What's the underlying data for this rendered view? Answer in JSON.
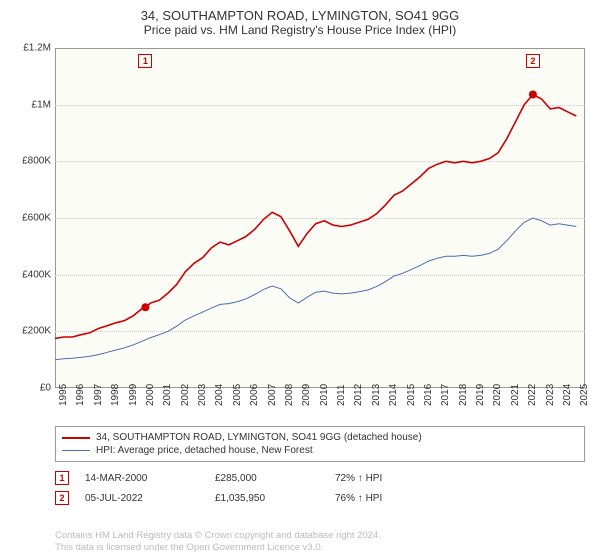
{
  "title": "34, SOUTHAMPTON ROAD, LYMINGTON, SO41 9GG",
  "subtitle": "Price paid vs. HM Land Registry's House Price Index (HPI)",
  "chart": {
    "type": "line",
    "background_color": "#fcfcf7",
    "border_color": "#999999",
    "grid_color": "#cccccc",
    "ylim": [
      0,
      1200000
    ],
    "ytick_step": 200000,
    "y_ticks": [
      {
        "v": 0,
        "label": "£0"
      },
      {
        "v": 200000,
        "label": "£200K"
      },
      {
        "v": 400000,
        "label": "£400K"
      },
      {
        "v": 600000,
        "label": "£600K"
      },
      {
        "v": 800000,
        "label": "£800K"
      },
      {
        "v": 1000000,
        "label": "£1M"
      },
      {
        "v": 1200000,
        "label": "£1.2M"
      }
    ],
    "x_years": [
      1995,
      1996,
      1997,
      1998,
      1999,
      2000,
      2001,
      2002,
      2003,
      2004,
      2005,
      2006,
      2007,
      2008,
      2009,
      2010,
      2011,
      2012,
      2013,
      2014,
      2015,
      2016,
      2017,
      2018,
      2019,
      2020,
      2021,
      2022,
      2023,
      2024,
      2025
    ],
    "xlim": [
      1995,
      2025.5
    ],
    "series": [
      {
        "name": "34, SOUTHAMPTON ROAD, LYMINGTON, SO41 9GG (detached house)",
        "color": "#cc0000",
        "line_width": 1.6,
        "data": [
          [
            1995.0,
            175000
          ],
          [
            1995.5,
            180000
          ],
          [
            1996.0,
            180000
          ],
          [
            1996.5,
            188000
          ],
          [
            1997.0,
            195000
          ],
          [
            1997.5,
            210000
          ],
          [
            1998.0,
            220000
          ],
          [
            1998.5,
            230000
          ],
          [
            1999.0,
            238000
          ],
          [
            1999.5,
            255000
          ],
          [
            2000.0,
            280000
          ],
          [
            2000.2,
            285000
          ],
          [
            2000.5,
            300000
          ],
          [
            2001.0,
            310000
          ],
          [
            2001.5,
            335000
          ],
          [
            2002.0,
            365000
          ],
          [
            2002.5,
            410000
          ],
          [
            2003.0,
            440000
          ],
          [
            2003.5,
            460000
          ],
          [
            2004.0,
            495000
          ],
          [
            2004.5,
            515000
          ],
          [
            2005.0,
            505000
          ],
          [
            2005.5,
            520000
          ],
          [
            2006.0,
            535000
          ],
          [
            2006.5,
            560000
          ],
          [
            2007.0,
            595000
          ],
          [
            2007.5,
            620000
          ],
          [
            2008.0,
            605000
          ],
          [
            2008.5,
            555000
          ],
          [
            2009.0,
            500000
          ],
          [
            2009.5,
            545000
          ],
          [
            2010.0,
            580000
          ],
          [
            2010.5,
            590000
          ],
          [
            2011.0,
            575000
          ],
          [
            2011.5,
            570000
          ],
          [
            2012.0,
            575000
          ],
          [
            2012.5,
            585000
          ],
          [
            2013.0,
            595000
          ],
          [
            2013.5,
            615000
          ],
          [
            2014.0,
            645000
          ],
          [
            2014.5,
            680000
          ],
          [
            2015.0,
            695000
          ],
          [
            2015.5,
            720000
          ],
          [
            2016.0,
            745000
          ],
          [
            2016.5,
            775000
          ],
          [
            2017.0,
            790000
          ],
          [
            2017.5,
            800000
          ],
          [
            2018.0,
            795000
          ],
          [
            2018.5,
            800000
          ],
          [
            2019.0,
            795000
          ],
          [
            2019.5,
            800000
          ],
          [
            2020.0,
            810000
          ],
          [
            2020.5,
            830000
          ],
          [
            2021.0,
            880000
          ],
          [
            2021.5,
            940000
          ],
          [
            2022.0,
            1000000
          ],
          [
            2022.5,
            1035950
          ],
          [
            2023.0,
            1020000
          ],
          [
            2023.5,
            985000
          ],
          [
            2024.0,
            990000
          ],
          [
            2024.5,
            975000
          ],
          [
            2025.0,
            960000
          ]
        ]
      },
      {
        "name": "HPI: Average price, detached house, New Forest",
        "color": "#4a6fb0",
        "line_width": 1,
        "data": [
          [
            1995.0,
            100000
          ],
          [
            1995.5,
            103000
          ],
          [
            1996.0,
            105000
          ],
          [
            1996.5,
            108000
          ],
          [
            1997.0,
            112000
          ],
          [
            1997.5,
            118000
          ],
          [
            1998.0,
            126000
          ],
          [
            1998.5,
            134000
          ],
          [
            1999.0,
            142000
          ],
          [
            1999.5,
            152000
          ],
          [
            2000.0,
            165000
          ],
          [
            2000.5,
            178000
          ],
          [
            2001.0,
            188000
          ],
          [
            2001.5,
            200000
          ],
          [
            2002.0,
            218000
          ],
          [
            2002.5,
            240000
          ],
          [
            2003.0,
            255000
          ],
          [
            2003.5,
            268000
          ],
          [
            2004.0,
            282000
          ],
          [
            2004.5,
            295000
          ],
          [
            2005.0,
            298000
          ],
          [
            2005.5,
            305000
          ],
          [
            2006.0,
            315000
          ],
          [
            2006.5,
            330000
          ],
          [
            2007.0,
            348000
          ],
          [
            2007.5,
            360000
          ],
          [
            2008.0,
            350000
          ],
          [
            2008.5,
            318000
          ],
          [
            2009.0,
            300000
          ],
          [
            2009.5,
            320000
          ],
          [
            2010.0,
            338000
          ],
          [
            2010.5,
            342000
          ],
          [
            2011.0,
            335000
          ],
          [
            2011.5,
            332000
          ],
          [
            2012.0,
            335000
          ],
          [
            2012.5,
            340000
          ],
          [
            2013.0,
            346000
          ],
          [
            2013.5,
            358000
          ],
          [
            2014.0,
            375000
          ],
          [
            2014.5,
            395000
          ],
          [
            2015.0,
            405000
          ],
          [
            2015.5,
            418000
          ],
          [
            2016.0,
            432000
          ],
          [
            2016.5,
            448000
          ],
          [
            2017.0,
            458000
          ],
          [
            2017.5,
            465000
          ],
          [
            2018.0,
            465000
          ],
          [
            2018.5,
            468000
          ],
          [
            2019.0,
            465000
          ],
          [
            2019.5,
            468000
          ],
          [
            2020.0,
            475000
          ],
          [
            2020.5,
            490000
          ],
          [
            2021.0,
            520000
          ],
          [
            2021.5,
            555000
          ],
          [
            2022.0,
            585000
          ],
          [
            2022.5,
            600000
          ],
          [
            2023.0,
            590000
          ],
          [
            2023.5,
            575000
          ],
          [
            2024.0,
            580000
          ],
          [
            2024.5,
            575000
          ],
          [
            2025.0,
            570000
          ]
        ]
      }
    ],
    "sale_points": [
      {
        "x": 2000.2,
        "y": 285000,
        "color": "#cc0000",
        "radius": 4
      },
      {
        "x": 2022.5,
        "y": 1035950,
        "color": "#cc0000",
        "radius": 4
      }
    ],
    "markers": [
      {
        "label": "1",
        "x": 2000.2,
        "box_color": "#cc0000"
      },
      {
        "label": "2",
        "x": 2022.5,
        "box_color": "#cc0000"
      }
    ]
  },
  "legend": {
    "border_color": "#999999",
    "items": [
      {
        "color": "#cc0000",
        "width": 2,
        "label": "34, SOUTHAMPTON ROAD, LYMINGTON, SO41 9GG (detached house)"
      },
      {
        "color": "#4a6fb0",
        "width": 1,
        "label": "HPI: Average price, detached house, New Forest"
      }
    ]
  },
  "events": [
    {
      "label": "1",
      "date": "14-MAR-2000",
      "price": "£285,000",
      "hpi": "72% ↑ HPI"
    },
    {
      "label": "2",
      "date": "05-JUL-2022",
      "price": "£1,035,950",
      "hpi": "76% ↑ HPI"
    }
  ],
  "footer": {
    "line1": "Contains HM Land Registry data © Crown copyright and database right 2024.",
    "line2": "This data is licensed under the Open Government Licence v3.0."
  },
  "colors": {
    "text": "#333333",
    "footer_text": "#bbbbbb",
    "marker_border": "#cc0000"
  },
  "fontsize": {
    "title": 13,
    "subtitle": 12,
    "axis": 10,
    "legend": 10,
    "footer": 9.5
  }
}
